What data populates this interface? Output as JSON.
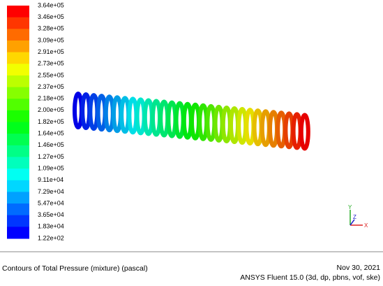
{
  "colorbar": {
    "labels": [
      "3.64e+05",
      "3.46e+05",
      "3.28e+05",
      "3.09e+05",
      "2.91e+05",
      "2.73e+05",
      "2.55e+05",
      "2.37e+05",
      "2.18e+05",
      "2.00e+05",
      "1.82e+05",
      "1.64e+05",
      "1.46e+05",
      "1.27e+05",
      "1.09e+05",
      "9.11e+04",
      "7.29e+04",
      "5.47e+04",
      "3.65e+04",
      "1.83e+04",
      "1.22e+02"
    ]
  },
  "footer": {
    "title": "Contours of Total Pressure (mixture)  (pascal)",
    "date": "Nov 30, 2021",
    "software": "ANSYS Fluent 15.0 (3d, dp, pbns, vof, ske)"
  },
  "axes_triad": {
    "y": "Y",
    "z": "Z",
    "x": "X"
  }
}
